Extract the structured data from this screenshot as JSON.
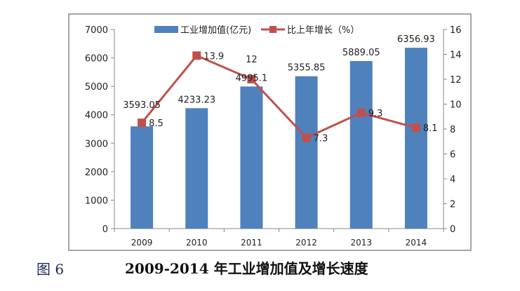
{
  "chart_data": {
    "type": "bar+line",
    "categories": [
      "2009",
      "2010",
      "2011",
      "2012",
      "2013",
      "2014"
    ],
    "series": [
      {
        "name": "工业增加值(亿元)",
        "type": "bar",
        "axis": "left",
        "color": "#4f81bd",
        "values": [
          3593.05,
          4233.23,
          4995.1,
          5355.85,
          5889.05,
          6356.93
        ],
        "labels": [
          "3593.05",
          "4233.23",
          "4995.1",
          "5355.85",
          "5889.05",
          "6356.93"
        ]
      },
      {
        "name": "比上年增长（%）",
        "type": "line",
        "axis": "right",
        "color": "#c0504d",
        "values": [
          8.5,
          13.9,
          12,
          7.3,
          9.3,
          8.1
        ],
        "labels": [
          "8.5",
          "13.9",
          "12",
          "7.3",
          "9.3",
          "8.1"
        ]
      }
    ],
    "yleft": {
      "lim": [
        0,
        7000
      ],
      "ticks": [
        "0",
        "1000",
        "2000",
        "3000",
        "4000",
        "5000",
        "6000",
        "7000"
      ]
    },
    "yright": {
      "lim": [
        0,
        16
      ],
      "ticks": [
        "0",
        "2",
        "4",
        "6",
        "8",
        "10",
        "12",
        "14",
        "16"
      ]
    },
    "legend": "top",
    "grid": false
  },
  "caption": {
    "figure_number": "图 6",
    "title": "2009-2014 年工业增加值及增长速度"
  }
}
